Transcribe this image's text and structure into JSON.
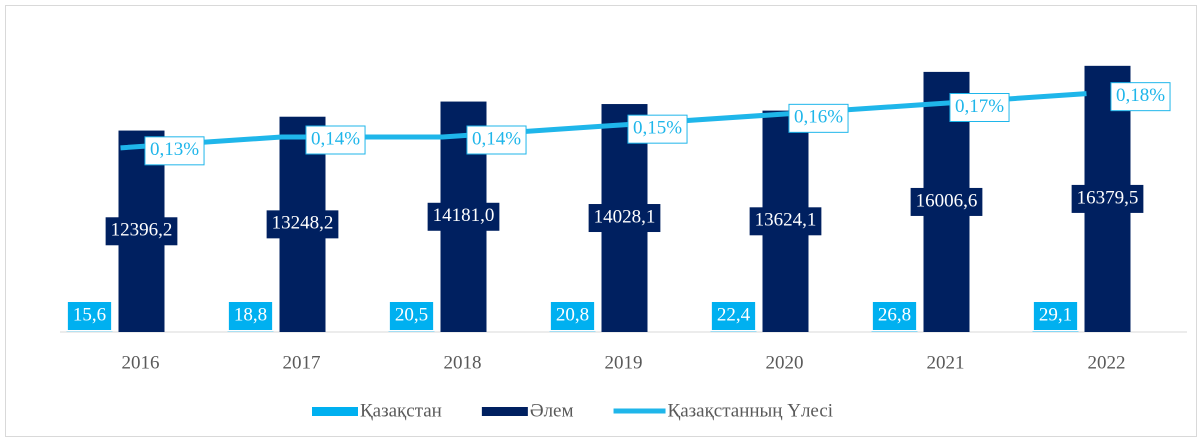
{
  "chart_data": {
    "type": "combo",
    "categories": [
      "2016",
      "2017",
      "2018",
      "2019",
      "2020",
      "2021",
      "2022"
    ],
    "series": [
      {
        "name": "Қазақстан",
        "type": "bar",
        "color": "#00b0f0",
        "values": [
          15.6,
          18.8,
          20.5,
          20.8,
          22.4,
          26.8,
          29.1
        ],
        "value_labels": [
          "15,6",
          "18,8",
          "20,5",
          "20,8",
          "22,4",
          "26,8",
          "29,1"
        ]
      },
      {
        "name": "Әлем",
        "type": "bar",
        "color": "#002060",
        "values": [
          12396.2,
          13248.2,
          14181.0,
          14028.1,
          13624.1,
          16006.6,
          16379.5
        ],
        "value_labels": [
          "12396,2",
          "13248,2",
          "14181,0",
          "14028,1",
          "13624,1",
          "16006,6",
          "16379,5"
        ]
      },
      {
        "name": "Қазақстанның Үлесі",
        "type": "line",
        "axis": "y2",
        "color": "#1fb6ea",
        "values": [
          0.13,
          0.14,
          0.14,
          0.15,
          0.16,
          0.17,
          0.18
        ],
        "value_labels": [
          "0,13%",
          "0,14%",
          "0,14%",
          "0,15%",
          "0,16%",
          "0,17%",
          "0,18%"
        ]
      }
    ],
    "ylim": [
      0,
      20000
    ],
    "y2lim": [
      -0.04,
      0.26
    ],
    "legend": "bottom"
  }
}
